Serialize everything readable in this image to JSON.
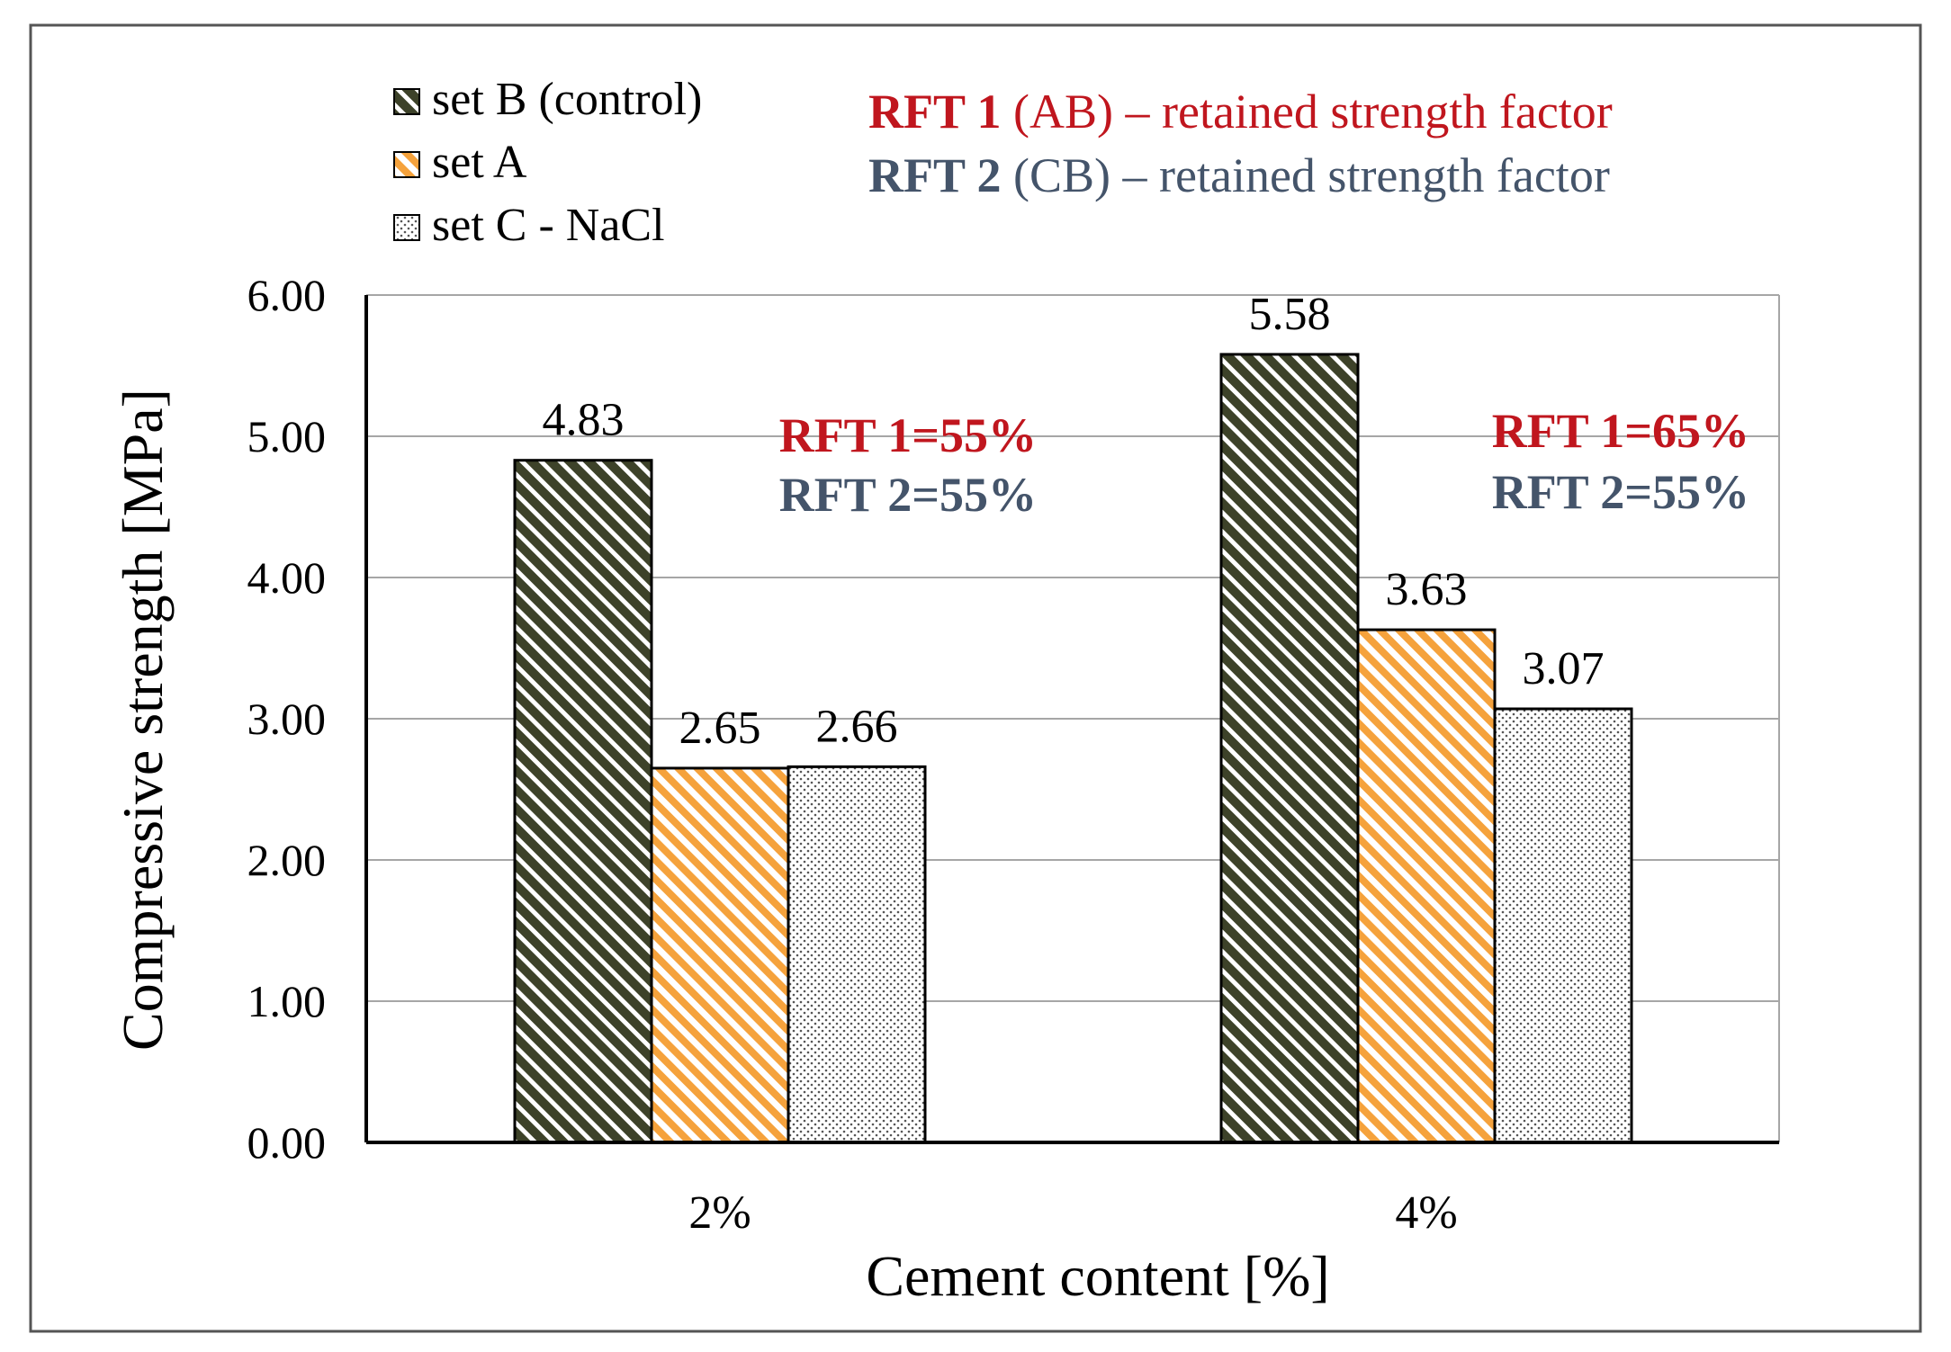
{
  "chart_data": {
    "type": "bar",
    "title": "",
    "xlabel": "Cement content [%]",
    "ylabel": "Compressive strength [MPa]",
    "ylim": [
      0,
      6
    ],
    "y_ticks": [
      "0.00",
      "1.00",
      "2.00",
      "3.00",
      "4.00",
      "5.00",
      "6.00"
    ],
    "grid": true,
    "categories": [
      "2%",
      "4%"
    ],
    "series": [
      {
        "name": "set B (control)",
        "values": [
          4.83,
          5.58
        ],
        "labels": [
          "4.83",
          "5.58"
        ],
        "pattern": "diagonal-dark",
        "color": "#3d4229"
      },
      {
        "name": "set A",
        "values": [
          2.65,
          3.63
        ],
        "labels": [
          "2.65",
          "3.63"
        ],
        "pattern": "diagonal-orange",
        "color": "#f5a23c"
      },
      {
        "name": "set C - NaCl",
        "values": [
          2.66,
          3.07
        ],
        "labels": [
          "2.66",
          "3.07"
        ],
        "pattern": "dots",
        "color": "#555555"
      }
    ],
    "legend": [
      {
        "label": "set B (control)",
        "pattern": "diagonal-dark"
      },
      {
        "label": "set A",
        "pattern": "diagonal-orange"
      },
      {
        "label": "set C - NaCl",
        "pattern": "dots"
      }
    ],
    "legend_position": "top-left",
    "annotations": {
      "key": [
        {
          "bold": "RFT 1",
          "text": " (AB) – retained strength factor",
          "color": "#c0161e"
        },
        {
          "bold": "RFT 2",
          "text": " (CB) – retained strength factor",
          "color": "#44546a"
        }
      ],
      "groups": [
        {
          "rft1": "RFT 1=55%",
          "rft2": "RFT 2=55%"
        },
        {
          "rft1": "RFT 1=65%",
          "rft2": "RFT 2=55%"
        }
      ],
      "rft1_color": "#c0161e",
      "rft2_color": "#44546a"
    }
  }
}
